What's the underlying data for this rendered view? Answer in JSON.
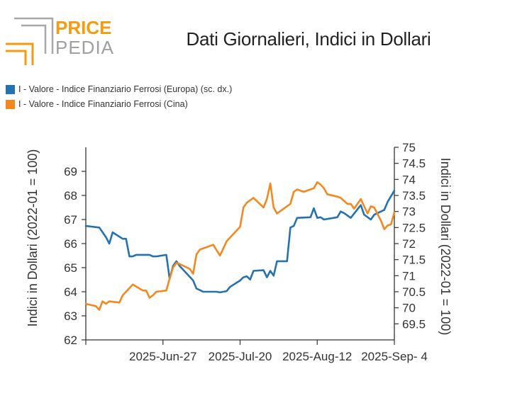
{
  "brand": {
    "line1": "PRICE",
    "line2": "PEDIA",
    "accent": "#f39c12",
    "gray": "#9e9e9e"
  },
  "colors": {
    "blue": "#2472b0",
    "orange": "#f5871f"
  },
  "chart_data": {
    "type": "line",
    "title": "Dati Giornalieri, Indici in Dollari",
    "ylabel": "Indici in Dollari (2022-01 = 100)",
    "y2label": "Indici in Dollari (2022-01 = 100)",
    "ylim": [
      62,
      70
    ],
    "yticks": [
      "62",
      "63",
      "64",
      "65",
      "66",
      "67",
      "68",
      "69"
    ],
    "y2lim": [
      69,
      75
    ],
    "y2ticks": [
      "69.5",
      "70",
      "70.5",
      "71",
      "71.5",
      "72",
      "72.5",
      "73",
      "73.5",
      "74",
      "74.5",
      "75"
    ],
    "xlim": [
      "2025-06-04",
      "2025-09-04"
    ],
    "xticks": [
      "2025-Jun-27",
      "2025-Jul-20",
      "2025-Aug-12",
      "2025-Sep- 4"
    ],
    "grid": false,
    "legend_position": "top-left",
    "series": [
      {
        "name": "I - Valore - Indice Finanziario Ferrosi (Europa) (sc. dx.)",
        "axis": "right",
        "color": "#2472b0",
        "points": [
          [
            "2025-06-04",
            72.55
          ],
          [
            "2025-06-08",
            72.5
          ],
          [
            "2025-06-10",
            72.2
          ],
          [
            "2025-06-11",
            72.0
          ],
          [
            "2025-06-12",
            72.35
          ],
          [
            "2025-06-15",
            72.15
          ],
          [
            "2025-06-16",
            72.15
          ],
          [
            "2025-06-17",
            71.6
          ],
          [
            "2025-06-18",
            71.6
          ],
          [
            "2025-06-19",
            71.65
          ],
          [
            "2025-06-23",
            71.65
          ],
          [
            "2025-06-24",
            71.6
          ],
          [
            "2025-06-25",
            71.6
          ],
          [
            "2025-06-28",
            71.65
          ],
          [
            "2025-06-29",
            70.9
          ],
          [
            "2025-06-30",
            71.3
          ],
          [
            "2025-07-01",
            71.45
          ],
          [
            "2025-07-02",
            71.3
          ],
          [
            "2025-07-06",
            70.85
          ],
          [
            "2025-07-07",
            70.6
          ],
          [
            "2025-07-08",
            70.55
          ],
          [
            "2025-07-09",
            70.5
          ],
          [
            "2025-07-13",
            70.5
          ],
          [
            "2025-07-14",
            70.48
          ],
          [
            "2025-07-16",
            70.52
          ],
          [
            "2025-07-17",
            70.65
          ],
          [
            "2025-07-20",
            70.85
          ],
          [
            "2025-07-21",
            70.95
          ],
          [
            "2025-07-22",
            70.98
          ],
          [
            "2025-07-23",
            70.88
          ],
          [
            "2025-07-24",
            71.15
          ],
          [
            "2025-07-27",
            71.17
          ],
          [
            "2025-07-28",
            70.95
          ],
          [
            "2025-07-29",
            71.15
          ],
          [
            "2025-07-30",
            71.0
          ],
          [
            "2025-07-31",
            71.45
          ],
          [
            "2025-08-03",
            71.45
          ],
          [
            "2025-08-04",
            72.5
          ],
          [
            "2025-08-05",
            72.55
          ],
          [
            "2025-08-06",
            72.8
          ],
          [
            "2025-08-10",
            72.82
          ],
          [
            "2025-08-11",
            73.1
          ],
          [
            "2025-08-12",
            72.8
          ],
          [
            "2025-08-13",
            72.82
          ],
          [
            "2025-08-14",
            72.75
          ],
          [
            "2025-08-18",
            72.82
          ],
          [
            "2025-08-19",
            73.0
          ],
          [
            "2025-08-20",
            72.95
          ],
          [
            "2025-08-22",
            72.8
          ],
          [
            "2025-08-25",
            73.2
          ],
          [
            "2025-08-26",
            72.9
          ],
          [
            "2025-08-28",
            72.75
          ],
          [
            "2025-08-29",
            72.9
          ],
          [
            "2025-09-01",
            73.05
          ],
          [
            "2025-09-02",
            73.3
          ],
          [
            "2025-09-04",
            73.65
          ]
        ]
      },
      {
        "name": "I - Valore - Indice Finanziario Ferrosi (Cina)",
        "axis": "left",
        "color": "#f5871f",
        "points": [
          [
            "2025-06-04",
            63.5
          ],
          [
            "2025-06-07",
            63.4
          ],
          [
            "2025-06-08",
            63.25
          ],
          [
            "2025-06-09",
            63.6
          ],
          [
            "2025-06-10",
            63.5
          ],
          [
            "2025-06-11",
            63.6
          ],
          [
            "2025-06-14",
            63.55
          ],
          [
            "2025-06-15",
            63.85
          ],
          [
            "2025-06-18",
            64.3
          ],
          [
            "2025-06-21",
            64.05
          ],
          [
            "2025-06-22",
            64.05
          ],
          [
            "2025-06-23",
            63.75
          ],
          [
            "2025-06-24",
            63.85
          ],
          [
            "2025-06-25",
            64.0
          ],
          [
            "2025-06-28",
            64.05
          ],
          [
            "2025-06-29",
            64.55
          ],
          [
            "2025-06-30",
            65.0
          ],
          [
            "2025-07-01",
            65.2
          ],
          [
            "2025-07-02",
            65.15
          ],
          [
            "2025-07-05",
            64.95
          ],
          [
            "2025-07-06",
            64.75
          ],
          [
            "2025-07-07",
            65.55
          ],
          [
            "2025-07-08",
            65.75
          ],
          [
            "2025-07-12",
            65.95
          ],
          [
            "2025-07-14",
            65.5
          ],
          [
            "2025-07-16",
            66.1
          ],
          [
            "2025-07-20",
            66.7
          ],
          [
            "2025-07-21",
            67.5
          ],
          [
            "2025-07-22",
            67.7
          ],
          [
            "2025-07-24",
            67.9
          ],
          [
            "2025-07-27",
            67.5
          ],
          [
            "2025-07-28",
            67.85
          ],
          [
            "2025-07-29",
            68.5
          ],
          [
            "2025-07-30",
            67.5
          ],
          [
            "2025-07-31",
            67.25
          ],
          [
            "2025-08-04",
            67.65
          ],
          [
            "2025-08-05",
            68.15
          ],
          [
            "2025-08-06",
            68.25
          ],
          [
            "2025-08-08",
            68.15
          ],
          [
            "2025-08-10",
            68.25
          ],
          [
            "2025-08-11",
            68.3
          ],
          [
            "2025-08-12",
            68.55
          ],
          [
            "2025-08-13",
            68.45
          ],
          [
            "2025-08-14",
            68.3
          ],
          [
            "2025-08-15",
            68.05
          ],
          [
            "2025-08-18",
            67.95
          ],
          [
            "2025-08-19",
            67.9
          ],
          [
            "2025-08-21",
            67.65
          ],
          [
            "2025-08-22",
            67.65
          ],
          [
            "2025-08-23",
            67.45
          ],
          [
            "2025-08-25",
            67.85
          ],
          [
            "2025-08-27",
            67.25
          ],
          [
            "2025-08-28",
            67.55
          ],
          [
            "2025-08-29",
            67.5
          ],
          [
            "2025-08-31",
            66.95
          ],
          [
            "2025-09-01",
            66.6
          ],
          [
            "2025-09-02",
            66.75
          ],
          [
            "2025-09-03",
            66.8
          ],
          [
            "2025-09-04",
            67.3
          ]
        ]
      }
    ]
  }
}
